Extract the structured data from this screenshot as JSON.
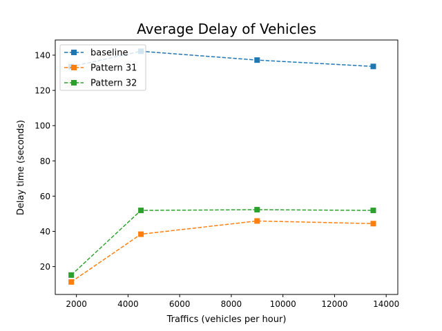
{
  "chart_data": {
    "type": "line",
    "title": "Average Delay of Vehicles",
    "xlabel": "Traffics (vehicles per hour)",
    "ylabel": "Delay time (seconds)",
    "xlim": [
      1180,
      14450
    ],
    "ylim": [
      4.2,
      148.6
    ],
    "xticks": [
      2000,
      4000,
      6000,
      8000,
      10000,
      12000,
      14000
    ],
    "yticks": [
      20,
      40,
      60,
      80,
      100,
      120,
      140
    ],
    "grid": false,
    "legend_position": "top-left",
    "series": [
      {
        "name": "baseline",
        "color": "#1f77b4",
        "marker": "square",
        "linestyle": "dashed",
        "x": [
          1800,
          4500,
          9000,
          13500
        ],
        "y": [
          133.5,
          142.2,
          137.2,
          133.6
        ]
      },
      {
        "name": "Pattern 31",
        "color": "#ff7f0e",
        "marker": "square",
        "linestyle": "dashed",
        "x": [
          1800,
          4500,
          9000,
          13500
        ],
        "y": [
          11.3,
          38.4,
          45.9,
          44.4
        ]
      },
      {
        "name": "Pattern 32",
        "color": "#2ca02c",
        "marker": "square",
        "linestyle": "dashed",
        "x": [
          1800,
          4500,
          9000,
          13500
        ],
        "y": [
          15.2,
          51.9,
          52.3,
          51.9
        ]
      }
    ]
  }
}
